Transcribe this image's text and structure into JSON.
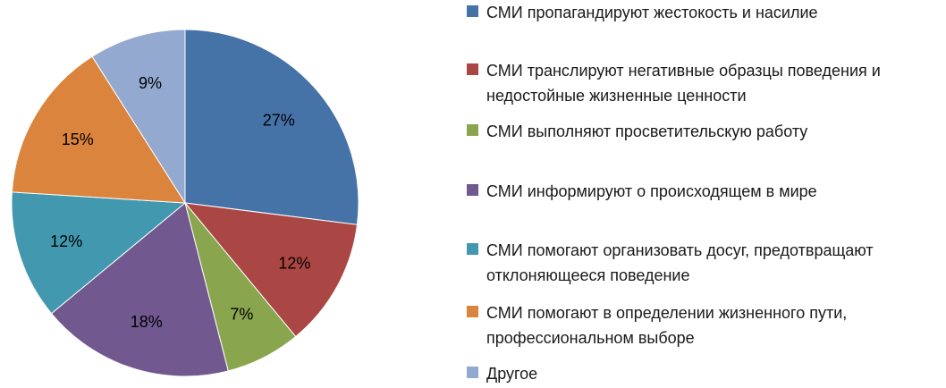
{
  "chart_data": {
    "type": "pie",
    "start_angle_deg": 0,
    "direction": "clockwise",
    "legend_position": "right",
    "slices": [
      {
        "label": "СМИ пропагандируют жестокость и насилие",
        "value": 27,
        "value_label": "27%",
        "color": "#4572A7"
      },
      {
        "label": "СМИ транслируют негативные образцы поведения и\nнедостойные жизненные ценности",
        "value": 12,
        "value_label": "12%",
        "color": "#AA4643"
      },
      {
        "label": "СМИ выполняют просветительскую работу",
        "value": 7,
        "value_label": "7%",
        "color": "#89A54E"
      },
      {
        "label": "СМИ информируют о происходящем в мире",
        "value": 18,
        "value_label": "18%",
        "color": "#71588F"
      },
      {
        "label": "СМИ помогают организовать досуг, предотвращают\nотклоняющееся поведение",
        "value": 12,
        "value_label": "12%",
        "color": "#4198AF"
      },
      {
        "label": "СМИ помогают в определении жизненного пути,\nпрофессиональном выборе",
        "value": 15,
        "value_label": "15%",
        "color": "#DB843D"
      },
      {
        "label": "Другое",
        "value": 9,
        "value_label": "9%",
        "color": "#93A9CF"
      }
    ]
  }
}
